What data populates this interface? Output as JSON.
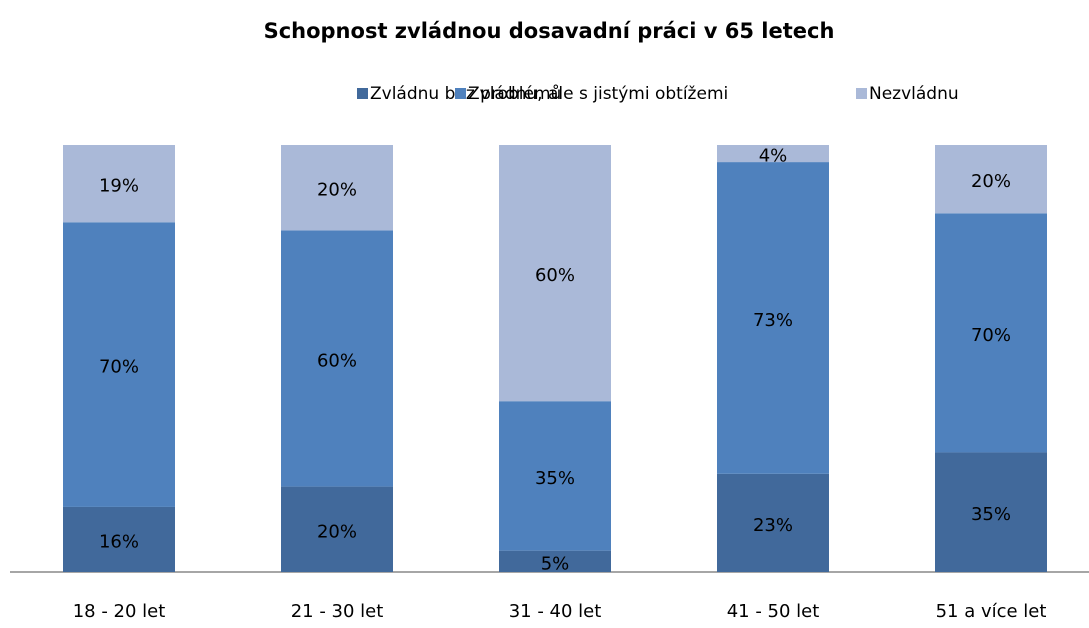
{
  "chart_data": {
    "type": "bar",
    "stacked": "percent",
    "title": "Schopnost zvládnou dosavadní práci v 65 letech",
    "categories": [
      "18 - 20 let",
      "21 - 30 let",
      "31 - 40 let",
      "41 - 50 let",
      "51 a více let"
    ],
    "series": [
      {
        "name": "Zvládnu bez problémů",
        "color": "#41699b",
        "values": [
          16,
          20,
          5,
          23,
          35
        ]
      },
      {
        "name": "Zvládnu, ale s jistými obtížemi",
        "color": "#4f81bd",
        "values": [
          70,
          60,
          35,
          73,
          70
        ]
      },
      {
        "name": "Nezvládnu",
        "color": "#aab9d8",
        "values": [
          19,
          20,
          60,
          4,
          20
        ]
      }
    ],
    "value_labels": [
      [
        "16%",
        "20%",
        "5%",
        "23%",
        "35%"
      ],
      [
        "70%",
        "60%",
        "35%",
        "73%",
        "70%"
      ],
      [
        "19%",
        "20%",
        "60%",
        "4%",
        "20%"
      ]
    ],
    "legend": "top"
  }
}
